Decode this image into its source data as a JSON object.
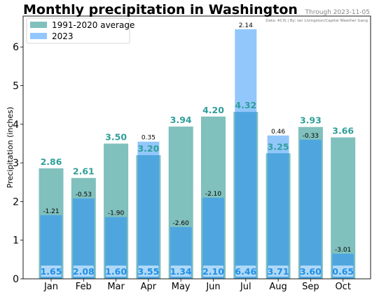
{
  "header": {
    "title": "Monthly precipitation in Washington",
    "subtitle": "Through 2023-11-05",
    "credit": "Data: ACIS | By: Ian Livingston/Capital Weather Gang"
  },
  "colors": {
    "average": "#80c0bd",
    "year_2023": "#92c7fb",
    "overlap": "#4fa6df",
    "avg_label": "#2f9f9a",
    "value_label": "#1f8fe8",
    "value_box": "#bfe1fb"
  },
  "chart_data": {
    "type": "bar",
    "title": "Monthly precipitation in Washington",
    "subtitle": "Through 2023-11-05",
    "ylabel": "Precipitation (inches)",
    "xlabel": "",
    "ylim": [
      0,
      6.8
    ],
    "yticks": [
      "0",
      "1",
      "2",
      "3",
      "4",
      "5",
      "6"
    ],
    "grid": false,
    "legend_position": "top-left",
    "categories": [
      "Jan",
      "Feb",
      "Mar",
      "Apr",
      "May",
      "Jun",
      "Jul",
      "Aug",
      "Sep",
      "Oct"
    ],
    "series": [
      {
        "name": "1991-2020 average",
        "values": [
          2.86,
          2.61,
          3.5,
          3.2,
          3.94,
          4.2,
          4.32,
          3.25,
          3.93,
          3.66
        ]
      },
      {
        "name": "2023",
        "values": [
          1.65,
          2.08,
          1.6,
          3.55,
          1.34,
          2.1,
          6.46,
          3.71,
          3.6,
          0.65
        ]
      }
    ],
    "average_labels": [
      "2.86",
      "2.61",
      "3.50",
      "3.20",
      "3.94",
      "4.20",
      "4.32",
      "3.25",
      "3.93",
      "3.66"
    ],
    "value_labels": [
      "1.65",
      "2.08",
      "1.60",
      "3.55",
      "1.34",
      "2.10",
      "6.46",
      "3.71",
      "3.60",
      "0.65"
    ],
    "difference_labels": [
      "-1.21",
      "-0.53",
      "-1.90",
      "0.35",
      "-2.60",
      "-2.10",
      "2.14",
      "0.46",
      "-0.33",
      "-3.01"
    ]
  }
}
